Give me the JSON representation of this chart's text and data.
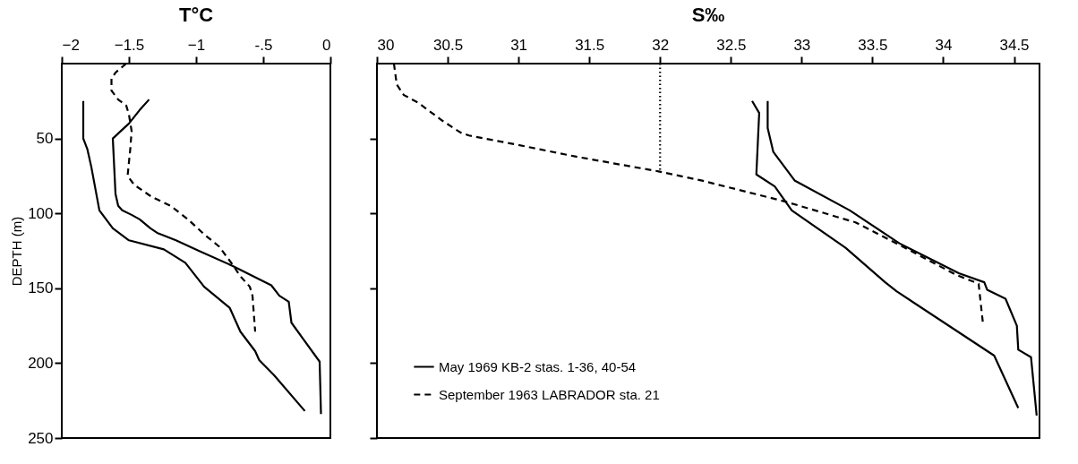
{
  "chart_data": [
    {
      "type": "line",
      "title": "T°C",
      "ylabel": "DEPTH (m)",
      "xlim": [
        -2,
        0
      ],
      "xticks": [
        -2,
        -1.5,
        -1,
        {
          "value": -0.5,
          "label": "-.5"
        },
        0
      ],
      "ylim": [
        250,
        0
      ],
      "yticks": [
        50,
        100,
        150,
        200,
        250
      ],
      "grid": false,
      "series": [
        {
          "color": "#000000",
          "line_style": "solid",
          "x": [
            -1.84,
            -1.84,
            -1.81,
            -1.78,
            -1.72,
            -1.62,
            -1.5,
            -1.24,
            -1.08,
            -0.94,
            -0.75,
            -0.67,
            -0.56,
            -0.53,
            -0.42,
            -0.19
          ],
          "values": [
            25,
            50,
            57,
            69,
            98,
            110,
            118,
            124,
            133,
            149,
            163,
            179,
            192,
            198,
            208,
            232
          ]
        },
        {
          "color": "#000000",
          "line_style": "solid",
          "x": [
            -1.35,
            -1.42,
            -1.5,
            -1.62,
            -1.6,
            -1.58,
            -1.55,
            -1.48,
            -1.42,
            -1.34,
            -1.29,
            -1.15,
            -0.98,
            -0.73,
            -0.44,
            -0.38,
            -0.31,
            -0.29,
            -0.21,
            -0.08,
            -0.07
          ],
          "values": [
            24,
            31,
            40,
            50,
            87,
            95,
            98,
            101,
            104,
            110,
            113,
            118,
            125,
            135,
            148,
            155,
            159,
            173,
            183,
            199,
            234
          ]
        },
        {
          "color": "#000000",
          "line_style": "dashed",
          "x": [
            -1.52,
            -1.6,
            -1.63,
            -1.63,
            -1.58,
            -1.52,
            -1.5,
            -1.48,
            -1.49,
            -1.51,
            -1.46,
            -1.33,
            -1.19,
            -1.06,
            -0.94,
            -0.83,
            -0.73,
            -0.67,
            -0.6,
            -0.58,
            -0.56
          ],
          "values": [
            0,
            6,
            10,
            18,
            24,
            28,
            34,
            45,
            57,
            75,
            81,
            89,
            95,
            104,
            114,
            122,
            134,
            142,
            149,
            155,
            179
          ]
        }
      ]
    },
    {
      "type": "line",
      "title": "S‰",
      "xlim": [
        30,
        34.68
      ],
      "xticks": [
        30,
        30.5,
        31,
        31.5,
        32,
        32.5,
        33,
        33.5,
        34,
        34.5
      ],
      "ylim": [
        250,
        0
      ],
      "yticks": [
        50,
        100,
        150,
        200,
        250
      ],
      "tick_labels": "x",
      "grid": false,
      "legend": "bottom left",
      "series": [
        {
          "name": "May 1969 KB-2 stas. 1-36, 40-54",
          "color": "#000000",
          "line_style": "solid",
          "x": [
            32.65,
            32.7,
            32.68,
            32.81,
            32.93,
            33.31,
            33.59,
            33.67,
            34.36,
            34.53
          ],
          "values": [
            25,
            33,
            74,
            82,
            98,
            123,
            146,
            152,
            195,
            230
          ]
        },
        {
          "color": "#000000",
          "line_style": "solid",
          "x": [
            32.76,
            32.76,
            32.8,
            32.95,
            33.34,
            33.69,
            34.11,
            34.29,
            34.31,
            34.44,
            34.52,
            34.53,
            34.62,
            34.66
          ],
          "values": [
            25,
            43,
            59,
            78,
            98,
            120,
            140,
            146,
            151,
            157,
            175,
            191,
            196,
            235
          ]
        },
        {
          "name": "September 1963 LABRADOR sta. 21",
          "color": "#000000",
          "line_style": "dashed",
          "x": [
            30.12,
            30.14,
            30.19,
            30.29,
            30.46,
            30.59,
            30.65,
            30.98,
            31.4,
            31.99,
            32.29,
            32.88,
            33.38,
            33.71,
            34.09,
            34.25,
            34.28
          ],
          "values": [
            0,
            14,
            21,
            26,
            38,
            46,
            48,
            54,
            62,
            72,
            78,
            92,
            106,
            122,
            141,
            147,
            173
          ]
        },
        {
          "color": "#000000",
          "line_style": "dotted",
          "x": [
            32,
            32
          ],
          "values": [
            0,
            72
          ]
        }
      ]
    }
  ]
}
